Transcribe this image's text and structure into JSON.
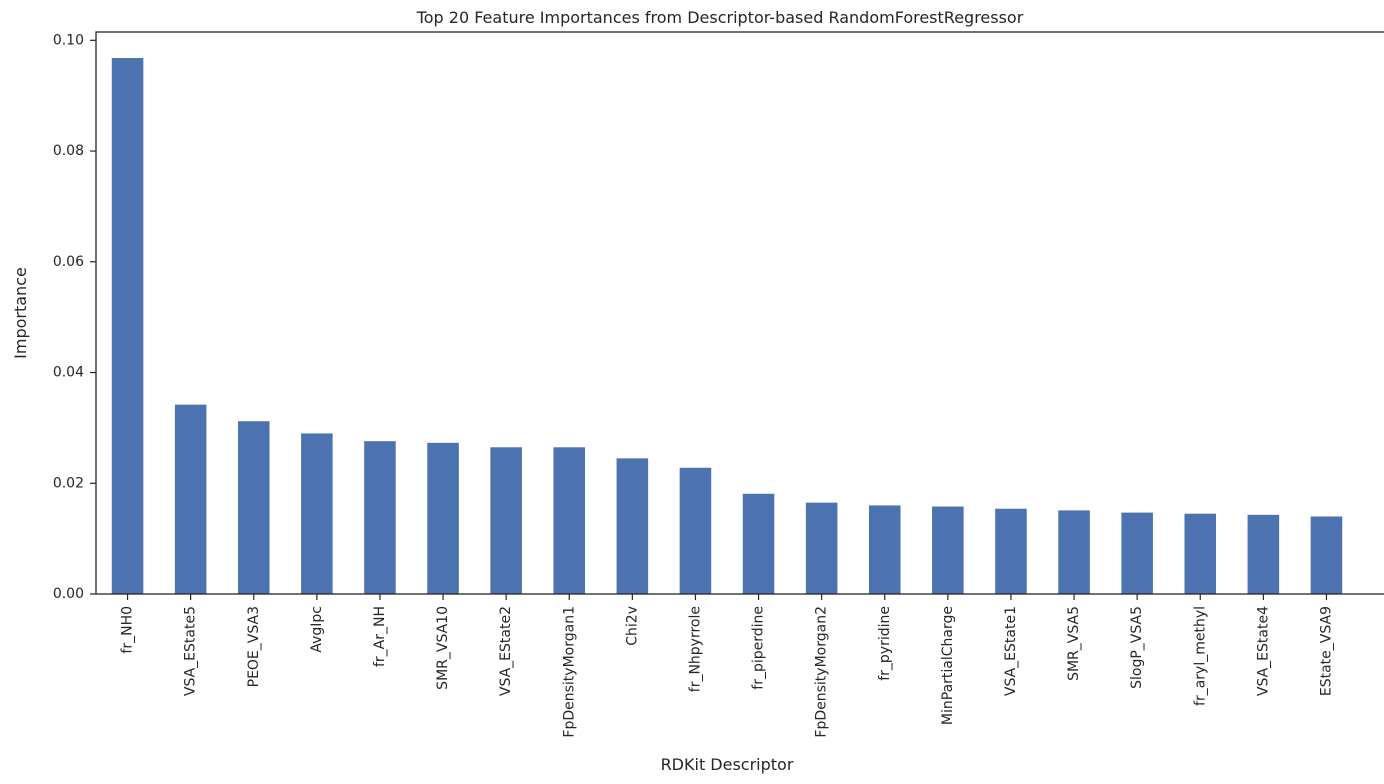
{
  "chart_data": {
    "type": "bar",
    "title": "Top 20 Feature Importances from Descriptor-based RandomForestRegressor",
    "xlabel": "RDKit Descriptor",
    "ylabel": "Importance",
    "ylim": [
      0,
      0.1015
    ],
    "yticks": [
      0.0,
      0.02,
      0.04,
      0.06,
      0.08,
      0.1
    ],
    "ytick_labels": [
      "0.00",
      "0.02",
      "0.04",
      "0.06",
      "0.08",
      "0.10"
    ],
    "grid": false,
    "bar_color": "#4c72b0",
    "categories": [
      "fr_NH0",
      "VSA_EState5",
      "PEOE_VSA3",
      "AvgIpc",
      "fr_Ar_NH",
      "SMR_VSA10",
      "VSA_EState2",
      "FpDensityMorgan1",
      "Chi2v",
      "fr_Nhpyrrole",
      "fr_piperdine",
      "FpDensityMorgan2",
      "fr_pyridine",
      "MinPartialCharge",
      "VSA_EState1",
      "SMR_VSA5",
      "SlogP_VSA5",
      "fr_aryl_methyl",
      "VSA_EState4",
      "EState_VSA9"
    ],
    "values": [
      0.0968,
      0.0342,
      0.0312,
      0.029,
      0.0276,
      0.0273,
      0.0265,
      0.0265,
      0.0245,
      0.0228,
      0.0181,
      0.0165,
      0.016,
      0.0158,
      0.0154,
      0.0151,
      0.0147,
      0.0145,
      0.0143,
      0.014
    ]
  }
}
